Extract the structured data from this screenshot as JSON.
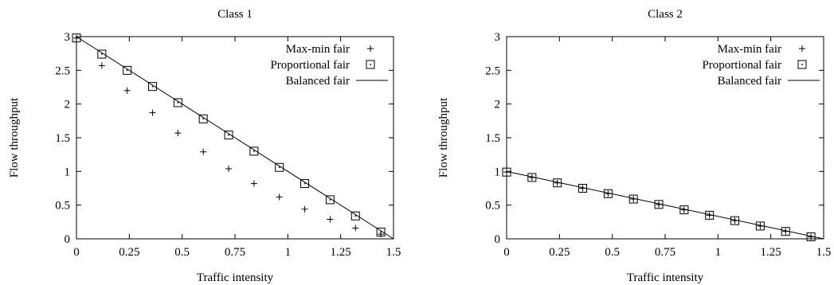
{
  "chart_data": [
    {
      "type": "scatter",
      "title": "Class 1",
      "xlabel": "Traffic intensity",
      "ylabel": "Flow throughput",
      "xlim": [
        0,
        1.5
      ],
      "ylim": [
        0,
        3
      ],
      "xticks": [
        "0",
        "0.25",
        "0.5",
        "0.75",
        "1",
        "1.25",
        "1.5"
      ],
      "yticks": [
        "0",
        "0.5",
        "1",
        "1.5",
        "2",
        "2.5",
        "3"
      ],
      "legend_position": "top-right",
      "legend": [
        "Max-min fair",
        "Proportional fair",
        "Balanced fair"
      ],
      "series": [
        {
          "name": "Max-min fair",
          "marker": "plus",
          "x": [
            0,
            0.12,
            0.24,
            0.36,
            0.48,
            0.6,
            0.72,
            0.84,
            0.96,
            1.08,
            1.2,
            1.32,
            1.44
          ],
          "y": [
            2.98,
            2.57,
            2.2,
            1.87,
            1.57,
            1.29,
            1.04,
            0.82,
            0.62,
            0.44,
            0.29,
            0.16,
            0.07
          ]
        },
        {
          "name": "Proportional fair",
          "marker": "square",
          "x": [
            0,
            0.12,
            0.24,
            0.36,
            0.48,
            0.6,
            0.72,
            0.84,
            0.96,
            1.08,
            1.2,
            1.32,
            1.44
          ],
          "y": [
            2.98,
            2.74,
            2.5,
            2.26,
            2.02,
            1.78,
            1.54,
            1.3,
            1.06,
            0.82,
            0.58,
            0.34,
            0.1
          ]
        },
        {
          "name": "Balanced fair",
          "marker": "line",
          "x": [
            0,
            1.5
          ],
          "y": [
            3.0,
            0
          ]
        }
      ]
    },
    {
      "type": "scatter",
      "title": "Class 2",
      "xlabel": "Traffic intensity",
      "ylabel": "Flow throughput",
      "xlim": [
        0,
        1.5
      ],
      "ylim": [
        0,
        3
      ],
      "xticks": [
        "0",
        "0.25",
        "0.5",
        "0.75",
        "1",
        "1.25",
        "1.5"
      ],
      "yticks": [
        "0",
        "0.5",
        "1",
        "1.5",
        "2",
        "2.5",
        "3"
      ],
      "legend_position": "top-right",
      "legend": [
        "Max-min fair",
        "Proportional fair",
        "Balanced fair"
      ],
      "series": [
        {
          "name": "Max-min fair",
          "marker": "plus",
          "x": [
            0,
            0.12,
            0.24,
            0.36,
            0.48,
            0.6,
            0.72,
            0.84,
            0.96,
            1.08,
            1.2,
            1.32,
            1.44
          ],
          "y": [
            0.99,
            0.91,
            0.83,
            0.75,
            0.67,
            0.59,
            0.51,
            0.43,
            0.35,
            0.27,
            0.19,
            0.11,
            0.03
          ]
        },
        {
          "name": "Proportional fair",
          "marker": "square",
          "x": [
            0,
            0.12,
            0.24,
            0.36,
            0.48,
            0.6,
            0.72,
            0.84,
            0.96,
            1.08,
            1.2,
            1.32,
            1.44
          ],
          "y": [
            0.99,
            0.91,
            0.83,
            0.75,
            0.67,
            0.59,
            0.51,
            0.43,
            0.35,
            0.27,
            0.19,
            0.11,
            0.03
          ]
        },
        {
          "name": "Balanced fair",
          "marker": "line",
          "x": [
            0,
            1.5
          ],
          "y": [
            1.0,
            0
          ]
        }
      ]
    }
  ]
}
